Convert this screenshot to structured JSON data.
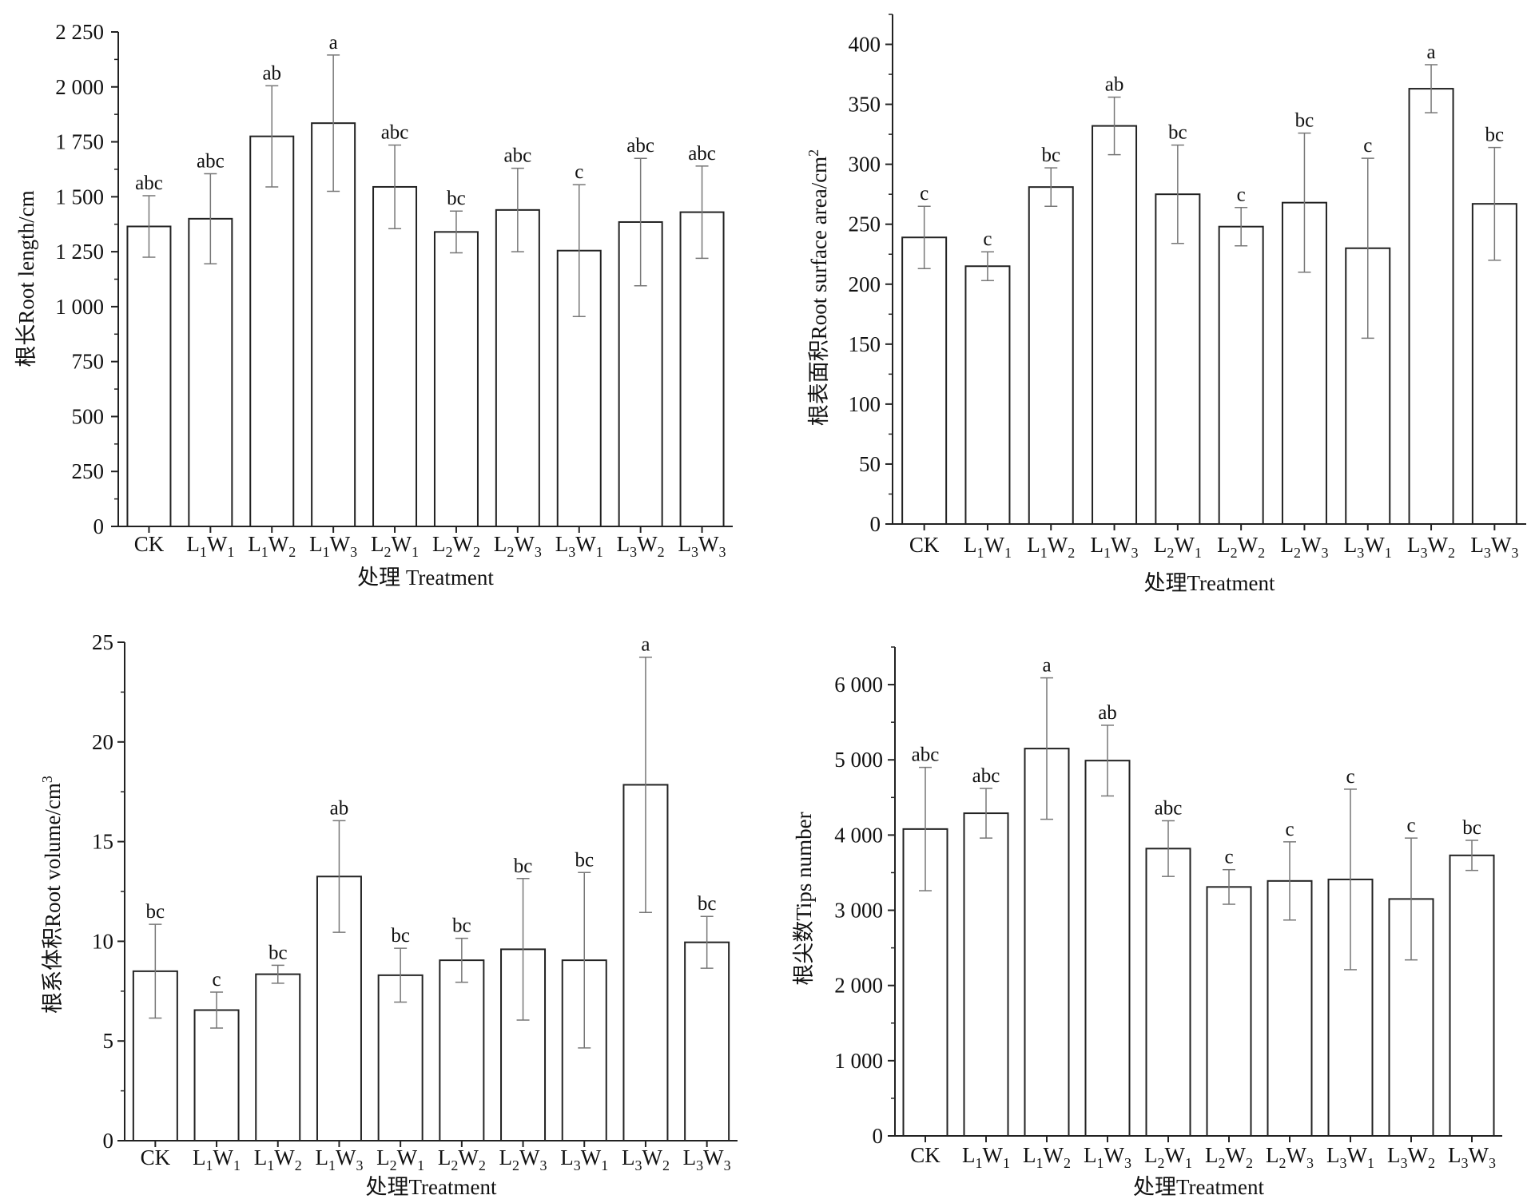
{
  "chart_data": [
    {
      "type": "bar",
      "xlabel": "处理 Treatment",
      "ylabel": "根长Root length/cm",
      "ylim": [
        0,
        2250
      ],
      "yticks": [
        0,
        250,
        500,
        750,
        1000,
        1250,
        1500,
        1750,
        2000,
        2250
      ],
      "yticklabels": [
        "0",
        "250",
        "500",
        "750",
        "1 000",
        "1 250",
        "1 500",
        "1 750",
        "2 000",
        "2 250"
      ],
      "categories": [
        {
          "L": "CK"
        },
        {
          "L": "L",
          "a": "1",
          "W": "W",
          "b": "1"
        },
        {
          "L": "L",
          "a": "1",
          "W": "W",
          "b": "2"
        },
        {
          "L": "L",
          "a": "1",
          "W": "W",
          "b": "3"
        },
        {
          "L": "L",
          "a": "2",
          "W": "W",
          "b": "1"
        },
        {
          "L": "L",
          "a": "2",
          "W": "W",
          "b": "2"
        },
        {
          "L": "L",
          "a": "2",
          "W": "W",
          "b": "3"
        },
        {
          "L": "L",
          "a": "3",
          "W": "W",
          "b": "1"
        },
        {
          "L": "L",
          "a": "3",
          "W": "W",
          "b": "2"
        },
        {
          "L": "L",
          "a": "3",
          "W": "W",
          "b": "3"
        }
      ],
      "values": [
        1365,
        1400,
        1775,
        1835,
        1545,
        1340,
        1440,
        1255,
        1385,
        1430
      ],
      "errors": [
        140,
        205,
        230,
        310,
        190,
        95,
        190,
        300,
        290,
        210
      ],
      "significance": [
        "abc",
        "abc",
        "ab",
        "a",
        "abc",
        "bc",
        "abc",
        "c",
        "abc",
        "abc"
      ]
    },
    {
      "type": "bar",
      "xlabel": "处理Treatment",
      "ylabel": "根表面积Root surface area/cm",
      "ylabel_sup": "2",
      "ylim": [
        0,
        425
      ],
      "yticks": [
        0,
        50,
        100,
        150,
        200,
        250,
        300,
        350,
        400
      ],
      "yticklabels": [
        "0",
        "50",
        "100",
        "150",
        "200",
        "250",
        "300",
        "350",
        "400"
      ],
      "categories": [
        {
          "L": "CK"
        },
        {
          "L": "L",
          "a": "1",
          "W": "W",
          "b": "1"
        },
        {
          "L": "L",
          "a": "1",
          "W": "W",
          "b": "2"
        },
        {
          "L": "L",
          "a": "1",
          "W": "W",
          "b": "3"
        },
        {
          "L": "L",
          "a": "2",
          "W": "W",
          "b": "1"
        },
        {
          "L": "L",
          "a": "2",
          "W": "W",
          "b": "2"
        },
        {
          "L": "L",
          "a": "2",
          "W": "W",
          "b": "3"
        },
        {
          "L": "L",
          "a": "3",
          "W": "W",
          "b": "1"
        },
        {
          "L": "L",
          "a": "3",
          "W": "W",
          "b": "2"
        },
        {
          "L": "L",
          "a": "3",
          "W": "W",
          "b": "3"
        }
      ],
      "values": [
        239,
        215,
        281,
        332,
        275,
        248,
        268,
        230,
        363,
        267
      ],
      "errors": [
        26,
        12,
        16,
        24,
        41,
        16,
        58,
        75,
        20,
        47
      ],
      "significance": [
        "c",
        "c",
        "bc",
        "ab",
        "bc",
        "c",
        "bc",
        "c",
        "a",
        "bc"
      ]
    },
    {
      "type": "bar",
      "xlabel": "处理Treatment",
      "ylabel": "根系体积Root volume/cm",
      "ylabel_sup": "3",
      "ylim": [
        0,
        25
      ],
      "yticks": [
        0,
        5,
        10,
        15,
        20,
        25
      ],
      "yticklabels": [
        "0",
        "5",
        "10",
        "15",
        "20",
        "25"
      ],
      "categories": [
        {
          "L": "CK"
        },
        {
          "L": "L",
          "a": "1",
          "W": "W",
          "b": "1"
        },
        {
          "L": "L",
          "a": "1",
          "W": "W",
          "b": "2"
        },
        {
          "L": "L",
          "a": "1",
          "W": "W",
          "b": "3"
        },
        {
          "L": "L",
          "a": "2",
          "W": "W",
          "b": "1"
        },
        {
          "L": "L",
          "a": "2",
          "W": "W",
          "b": "2"
        },
        {
          "L": "L",
          "a": "2",
          "W": "W",
          "b": "3"
        },
        {
          "L": "L",
          "a": "3",
          "W": "W",
          "b": "1"
        },
        {
          "L": "L",
          "a": "3",
          "W": "W",
          "b": "2"
        },
        {
          "L": "L",
          "a": "3",
          "W": "W",
          "b": "3"
        }
      ],
      "values": [
        8.5,
        6.55,
        8.35,
        13.25,
        8.3,
        9.05,
        9.6,
        9.05,
        17.85,
        9.95
      ],
      "errors": [
        2.35,
        0.9,
        0.45,
        2.8,
        1.35,
        1.1,
        3.55,
        4.4,
        6.4,
        1.3
      ],
      "significance": [
        "bc",
        "c",
        "bc",
        "ab",
        "bc",
        "bc",
        "bc",
        "bc",
        "a",
        "bc"
      ]
    },
    {
      "type": "bar",
      "xlabel": "处理Treatment",
      "ylabel": "根尖数Tips number",
      "ylim": [
        0,
        6500
      ],
      "yticks": [
        0,
        1000,
        2000,
        3000,
        4000,
        5000,
        6000
      ],
      "yticklabels": [
        "0",
        "1 000",
        "2 000",
        "3 000",
        "4 000",
        "5 000",
        "6 000"
      ],
      "categories": [
        {
          "L": "CK"
        },
        {
          "L": "L",
          "a": "1",
          "W": "W",
          "b": "1"
        },
        {
          "L": "L",
          "a": "1",
          "W": "W",
          "b": "2"
        },
        {
          "L": "L",
          "a": "1",
          "W": "W",
          "b": "3"
        },
        {
          "L": "L",
          "a": "2",
          "W": "W",
          "b": "1"
        },
        {
          "L": "L",
          "a": "2",
          "W": "W",
          "b": "2"
        },
        {
          "L": "L",
          "a": "2",
          "W": "W",
          "b": "3"
        },
        {
          "L": "L",
          "a": "3",
          "W": "W",
          "b": "1"
        },
        {
          "L": "L",
          "a": "3",
          "W": "W",
          "b": "2"
        },
        {
          "L": "L",
          "a": "3",
          "W": "W",
          "b": "3"
        }
      ],
      "values": [
        4080,
        4290,
        5150,
        4990,
        3820,
        3310,
        3390,
        3410,
        3150,
        3730
      ],
      "errors": [
        820,
        330,
        940,
        470,
        370,
        230,
        520,
        1200,
        810,
        200
      ],
      "significance": [
        "abc",
        "abc",
        "a",
        "ab",
        "abc",
        "c",
        "c",
        "c",
        "c",
        "bc"
      ]
    }
  ]
}
